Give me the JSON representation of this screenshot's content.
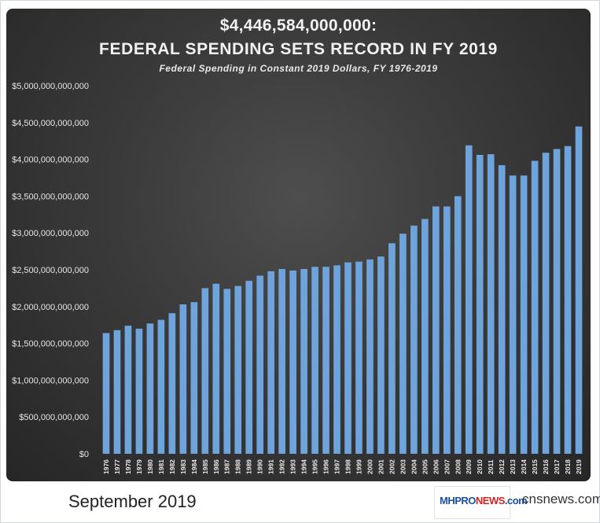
{
  "chart_data": {
    "type": "bar",
    "title": "$4,446,584,000,000:",
    "title_line2": "FEDERAL SPENDING SETS RECORD IN FY 2019",
    "subtitle": "Federal Spending  in Constant  2019 Dollars,  FY 1976-2019",
    "xlabel": "",
    "ylabel": "",
    "ylim": [
      0,
      5000000000000
    ],
    "yticks": [
      0,
      500000000000,
      1000000000000,
      1500000000000,
      2000000000000,
      2500000000000,
      3000000000000,
      3500000000000,
      4000000000000,
      4500000000000,
      5000000000000
    ],
    "ytick_labels": [
      "$0",
      "$500,000,000,000",
      "$1,000,000,000,000",
      "$1,500,000,000,000",
      "$2,000,000,000,000",
      "$2,500,000,000,000",
      "$3,000,000,000,000",
      "$3,500,000,000,000",
      "$4,000,000,000,000",
      "$4,500,000,000,000",
      "$5,000,000,000,000"
    ],
    "grid": false,
    "legend": "none",
    "bar_color": "#6fa3dc",
    "categories": [
      "1976",
      "1977",
      "1978",
      "1979",
      "1980",
      "1981",
      "1982",
      "1983",
      "1984",
      "1985",
      "1986",
      "1987",
      "1988",
      "1989",
      "1990",
      "1991",
      "1992",
      "1993",
      "1994",
      "1995",
      "1996",
      "1997",
      "1998",
      "1999",
      "2000",
      "2001",
      "2002",
      "2003",
      "2004",
      "2005",
      "2006",
      "2007",
      "2008",
      "2009",
      "2010",
      "2011",
      "2012",
      "2013",
      "2014",
      "2015",
      "2016",
      "2017",
      "2018",
      "2019"
    ],
    "values": [
      1640000000000,
      1680000000000,
      1740000000000,
      1700000000000,
      1770000000000,
      1820000000000,
      1910000000000,
      2030000000000,
      2060000000000,
      2250000000000,
      2310000000000,
      2240000000000,
      2280000000000,
      2350000000000,
      2420000000000,
      2480000000000,
      2510000000000,
      2490000000000,
      2510000000000,
      2540000000000,
      2540000000000,
      2560000000000,
      2600000000000,
      2610000000000,
      2640000000000,
      2680000000000,
      2860000000000,
      2990000000000,
      3100000000000,
      3190000000000,
      3360000000000,
      3360000000000,
      3500000000000,
      4190000000000,
      4060000000000,
      4070000000000,
      3920000000000,
      3780000000000,
      3780000000000,
      3980000000000,
      4090000000000,
      4140000000000,
      4180000000000,
      4446584000000
    ]
  },
  "footer": {
    "date_caption": "September 2019",
    "logo_text_main_1": "MHPRO",
    "logo_text_main_2": "NEWS",
    "logo_text_main_3": ".com",
    "source": "cnsnews.com"
  }
}
